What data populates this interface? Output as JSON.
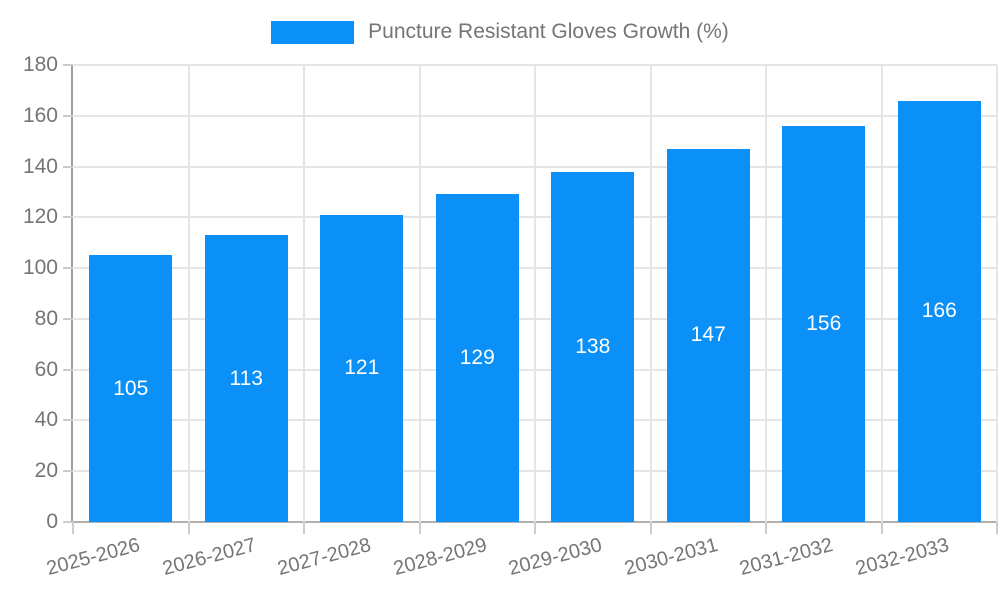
{
  "chart_data": {
    "type": "bar",
    "title": "Puncture Resistant Gloves Growth (%)",
    "legend": {
      "position": "top",
      "label": "Puncture Resistant Gloves Growth (%)"
    },
    "categories": [
      "2025-2026",
      "2026-2027",
      "2027-2028",
      "2028-2029",
      "2029-2030",
      "2030-2031",
      "2031-2032",
      "2032-2033"
    ],
    "values": [
      105,
      113,
      121,
      129,
      138,
      147,
      156,
      166
    ],
    "xlabel": "",
    "ylabel": "",
    "ylim": [
      0,
      180
    ],
    "ytick_step": 20,
    "ytick_labels": [
      "0",
      "20",
      "40",
      "60",
      "80",
      "100",
      "120",
      "140",
      "160",
      "180"
    ],
    "grid": true,
    "bar_labels_inside": true,
    "colors": {
      "bar": "#0a90f7",
      "grid": "#e5e5e5",
      "axis_line": "#9e9e9e",
      "baseline": "#b0b0b0",
      "tick": "#cccccc",
      "text": "#757575",
      "bar_label_text": "#ffffff"
    }
  }
}
